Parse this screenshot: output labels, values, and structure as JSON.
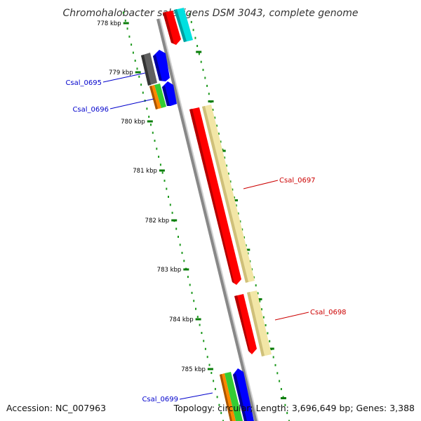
{
  "title": "Chromohalobacter salexigens DSM 3043, complete genome",
  "footer": {
    "accession": "Accession: NC_007963",
    "topology": "Topology: circular; Length: 3,696,649 bp; Genes: 3,388"
  },
  "ticks": [
    "778 kbp",
    "779 kbp",
    "780 kbp",
    "781 kbp",
    "782 kbp",
    "783 kbp",
    "784 kbp",
    "785 kbp"
  ],
  "gene_labels": [
    {
      "text": "Csal_0695",
      "color": "#0000cc"
    },
    {
      "text": "Csal_0696",
      "color": "#0000cc"
    },
    {
      "text": "Csal_0697",
      "color": "#cc0000"
    },
    {
      "text": "Csal_0698",
      "color": "#cc0000"
    },
    {
      "text": "Csal_0699",
      "color": "#0000cc"
    }
  ],
  "colors": {
    "backbone": "#888888",
    "tick_major": "#0a7d0a",
    "tick_minor": "#1f9a1f",
    "cds": "#ff0000",
    "gene_track": "#f2e6a6",
    "blue": "#0000ff",
    "cyan": "#00e0e0",
    "gray": "#606060",
    "orange": "#ff8800",
    "green": "#33cc33"
  }
}
